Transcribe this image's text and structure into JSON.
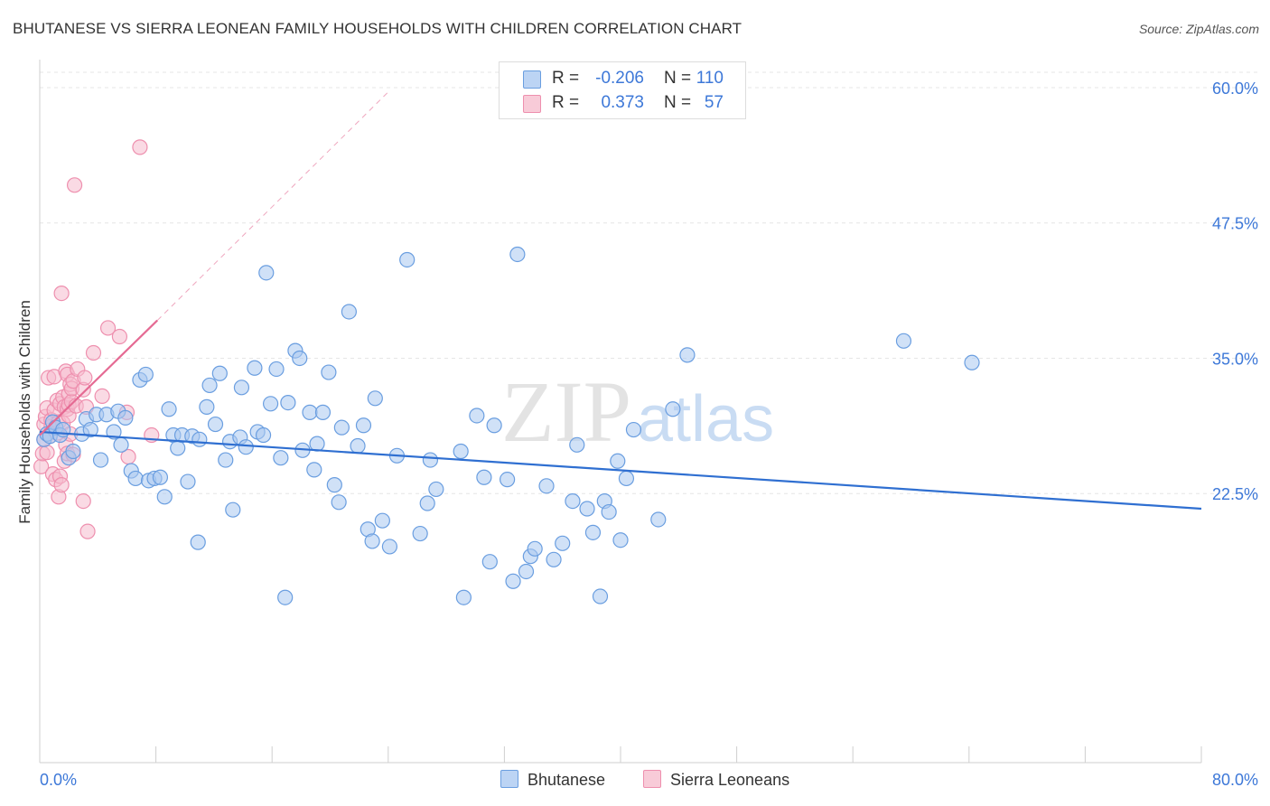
{
  "header": {
    "title": "BHUTANESE VS SIERRA LEONEAN FAMILY HOUSEHOLDS WITH CHILDREN CORRELATION CHART",
    "source": "Source: ZipAtlas.com"
  },
  "watermark": {
    "zip": "ZIP",
    "atlas": "atlas"
  },
  "legend": {
    "rows": [
      {
        "r_label": "R =",
        "r_value": "-0.206",
        "n_label": "N =",
        "n_value": "110"
      },
      {
        "r_label": "R =",
        "r_value": "0.373",
        "n_label": "N =",
        "n_value": "57"
      }
    ]
  },
  "colors": {
    "blue_fill": "#a9c8f0",
    "blue_stroke": "#6a9ee0",
    "blue_line": "#2f6fd1",
    "pink_fill": "#f6bccd",
    "pink_stroke": "#ee8fae",
    "pink_line": "#e56a93",
    "axis_label": "#3d78d8",
    "grid": "#e6e6e6"
  },
  "chart_data": {
    "type": "scatter",
    "title": "BHUTANESE VS SIERRA LEONEAN FAMILY HOUSEHOLDS WITH CHILDREN CORRELATION CHART",
    "xlabel": "",
    "ylabel": "Family Households with Children",
    "xlim": [
      0,
      80
    ],
    "ylim": [
      12,
      60
    ],
    "x_tick_labels": [
      "0.0%",
      "80.0%"
    ],
    "y_ticks": [
      22.5,
      35.0,
      47.5,
      60.0
    ],
    "y_tick_labels": [
      "22.5%",
      "35.0%",
      "47.5%",
      "60.0%"
    ],
    "grid": true,
    "legend_position": "bottom",
    "series": [
      {
        "name": "Bhutanese",
        "color": "#a9c8f0",
        "trend": {
          "x": [
            0,
            80
          ],
          "y": [
            28.2,
            21.1
          ]
        },
        "points": [
          [
            0.3,
            27.5
          ],
          [
            0.5,
            28.0
          ],
          [
            0.7,
            27.8
          ],
          [
            0.9,
            29.1
          ],
          [
            1.1,
            28.6
          ],
          [
            1.4,
            27.9
          ],
          [
            1.6,
            28.4
          ],
          [
            2.0,
            25.8
          ],
          [
            2.3,
            26.4
          ],
          [
            2.9,
            28.0
          ],
          [
            3.2,
            29.4
          ],
          [
            3.5,
            28.4
          ],
          [
            3.9,
            29.8
          ],
          [
            4.2,
            25.6
          ],
          [
            4.6,
            29.8
          ],
          [
            5.1,
            28.2
          ],
          [
            5.4,
            30.1
          ],
          [
            5.6,
            27.0
          ],
          [
            5.9,
            29.5
          ],
          [
            6.3,
            24.6
          ],
          [
            6.6,
            23.9
          ],
          [
            6.9,
            33.0
          ],
          [
            7.3,
            33.5
          ],
          [
            7.5,
            23.7
          ],
          [
            7.9,
            23.9
          ],
          [
            8.3,
            24.0
          ],
          [
            8.6,
            22.2
          ],
          [
            8.9,
            30.3
          ],
          [
            9.2,
            27.9
          ],
          [
            9.5,
            26.7
          ],
          [
            9.8,
            27.9
          ],
          [
            10.2,
            23.6
          ],
          [
            10.5,
            27.8
          ],
          [
            10.9,
            18.0
          ],
          [
            11.0,
            27.5
          ],
          [
            11.5,
            30.5
          ],
          [
            11.7,
            32.5
          ],
          [
            12.1,
            28.9
          ],
          [
            12.4,
            33.6
          ],
          [
            12.8,
            25.6
          ],
          [
            13.1,
            27.3
          ],
          [
            13.3,
            21.0
          ],
          [
            13.8,
            27.7
          ],
          [
            13.9,
            32.3
          ],
          [
            14.2,
            26.8
          ],
          [
            14.8,
            34.1
          ],
          [
            15.0,
            28.2
          ],
          [
            15.4,
            27.9
          ],
          [
            15.6,
            42.9
          ],
          [
            15.9,
            30.8
          ],
          [
            16.3,
            34.0
          ],
          [
            16.6,
            25.8
          ],
          [
            16.9,
            12.9
          ],
          [
            17.1,
            30.9
          ],
          [
            17.6,
            35.7
          ],
          [
            17.9,
            35.0
          ],
          [
            18.1,
            26.5
          ],
          [
            18.6,
            30.0
          ],
          [
            18.9,
            24.7
          ],
          [
            19.1,
            27.1
          ],
          [
            19.5,
            30.0
          ],
          [
            19.9,
            33.7
          ],
          [
            20.3,
            23.3
          ],
          [
            20.6,
            21.7
          ],
          [
            20.8,
            28.6
          ],
          [
            21.3,
            39.3
          ],
          [
            21.9,
            26.9
          ],
          [
            22.3,
            28.8
          ],
          [
            22.6,
            19.2
          ],
          [
            22.9,
            18.1
          ],
          [
            23.1,
            31.3
          ],
          [
            23.6,
            20.0
          ],
          [
            24.1,
            17.6
          ],
          [
            24.6,
            26.0
          ],
          [
            25.3,
            44.1
          ],
          [
            26.2,
            18.8
          ],
          [
            26.7,
            21.6
          ],
          [
            26.9,
            25.6
          ],
          [
            27.3,
            22.9
          ],
          [
            29.0,
            26.4
          ],
          [
            29.2,
            12.9
          ],
          [
            30.1,
            29.7
          ],
          [
            30.6,
            24.0
          ],
          [
            31.0,
            16.2
          ],
          [
            31.3,
            28.8
          ],
          [
            32.2,
            23.8
          ],
          [
            32.6,
            14.4
          ],
          [
            32.9,
            44.6
          ],
          [
            33.5,
            15.3
          ],
          [
            33.8,
            16.7
          ],
          [
            34.1,
            17.4
          ],
          [
            34.9,
            23.2
          ],
          [
            35.4,
            16.4
          ],
          [
            36.0,
            17.9
          ],
          [
            36.7,
            21.8
          ],
          [
            37.0,
            27.0
          ],
          [
            37.7,
            21.1
          ],
          [
            38.1,
            18.9
          ],
          [
            38.6,
            13.0
          ],
          [
            38.9,
            21.8
          ],
          [
            39.2,
            20.8
          ],
          [
            39.8,
            25.5
          ],
          [
            40.0,
            18.2
          ],
          [
            40.4,
            23.9
          ],
          [
            40.9,
            28.4
          ],
          [
            42.6,
            20.1
          ],
          [
            43.6,
            30.3
          ],
          [
            44.6,
            35.3
          ],
          [
            59.5,
            36.6
          ],
          [
            64.2,
            34.6
          ]
        ]
      },
      {
        "name": "Sierra Leoneans",
        "color": "#f6bccd",
        "trend": {
          "x": [
            0,
            8.1
          ],
          "y": [
            27.9,
            38.5
          ]
        },
        "trend_extension": {
          "x": [
            8.1,
            24.0
          ],
          "y": [
            38.5,
            59.6
          ]
        },
        "points": [
          [
            0.1,
            25.0
          ],
          [
            0.2,
            26.2
          ],
          [
            0.3,
            27.5
          ],
          [
            0.3,
            28.9
          ],
          [
            0.4,
            29.6
          ],
          [
            0.5,
            30.4
          ],
          [
            0.5,
            26.3
          ],
          [
            0.6,
            33.2
          ],
          [
            0.7,
            27.8
          ],
          [
            0.8,
            28.7
          ],
          [
            0.8,
            29.3
          ],
          [
            0.9,
            24.3
          ],
          [
            1.0,
            30.2
          ],
          [
            1.0,
            33.3
          ],
          [
            1.1,
            23.8
          ],
          [
            1.2,
            28.1
          ],
          [
            1.2,
            31.1
          ],
          [
            1.3,
            29.1
          ],
          [
            1.3,
            22.2
          ],
          [
            1.4,
            30.8
          ],
          [
            1.4,
            24.1
          ],
          [
            1.5,
            41.0
          ],
          [
            1.5,
            23.3
          ],
          [
            1.6,
            31.4
          ],
          [
            1.6,
            29.0
          ],
          [
            1.7,
            30.5
          ],
          [
            1.7,
            25.5
          ],
          [
            1.8,
            27.0
          ],
          [
            1.8,
            33.8
          ],
          [
            1.9,
            26.2
          ],
          [
            1.9,
            30.3
          ],
          [
            1.9,
            33.5
          ],
          [
            2.0,
            31.7
          ],
          [
            2.0,
            30.7
          ],
          [
            2.0,
            29.7
          ],
          [
            2.1,
            28.0
          ],
          [
            2.1,
            32.6
          ],
          [
            2.2,
            31.0
          ],
          [
            2.2,
            32.2
          ],
          [
            2.3,
            26.1
          ],
          [
            2.3,
            32.9
          ],
          [
            2.4,
            51.0
          ],
          [
            2.5,
            30.6
          ],
          [
            2.6,
            34.0
          ],
          [
            3.0,
            21.8
          ],
          [
            3.0,
            32.1
          ],
          [
            3.1,
            33.2
          ],
          [
            3.2,
            30.5
          ],
          [
            3.3,
            19.0
          ],
          [
            3.7,
            35.5
          ],
          [
            4.3,
            31.5
          ],
          [
            4.7,
            37.8
          ],
          [
            5.5,
            37.0
          ],
          [
            6.0,
            30.0
          ],
          [
            6.1,
            25.9
          ],
          [
            6.9,
            54.5
          ],
          [
            7.7,
            27.9
          ]
        ]
      }
    ]
  }
}
